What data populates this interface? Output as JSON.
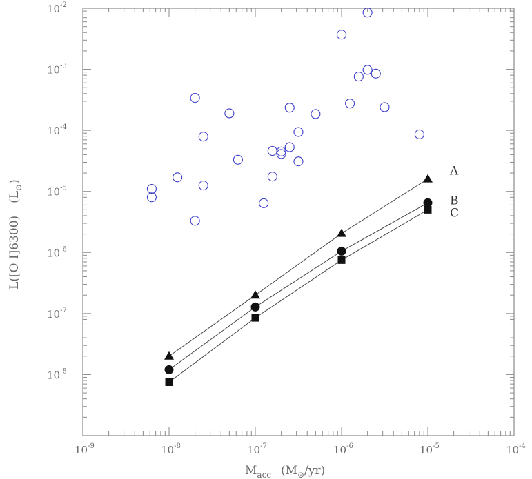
{
  "chart_data": {
    "type": "scatter",
    "title": "",
    "xlabel": "M_acc (M_sun/yr)",
    "ylabel": "L([O I]6300) (L_sun)",
    "xscale": "log",
    "yscale": "log",
    "xlim": [
      1e-09,
      0.0001
    ],
    "ylim": [
      1e-09,
      0.01
    ],
    "x_ticks": [
      {
        "base": "10",
        "exp": "-9"
      },
      {
        "base": "10",
        "exp": "-8"
      },
      {
        "base": "10",
        "exp": "-7"
      },
      {
        "base": "10",
        "exp": "-6"
      },
      {
        "base": "10",
        "exp": "-5"
      },
      {
        "base": "10",
        "exp": "-4"
      }
    ],
    "y_ticks": [
      {
        "base": "10",
        "exp": "-8",
        "value": 1e-08
      },
      {
        "base": "10",
        "exp": "-7",
        "value": 1e-07
      },
      {
        "base": "10",
        "exp": "-6",
        "value": 1e-06
      },
      {
        "base": "10",
        "exp": "-5",
        "value": 1e-05
      },
      {
        "base": "10",
        "exp": "-4",
        "value": 0.0001
      },
      {
        "base": "10",
        "exp": "-3",
        "value": 0.001
      },
      {
        "base": "10",
        "exp": "-2",
        "value": 0.01
      }
    ],
    "observations": {
      "marker": "open-circle",
      "color": "#3c3cc8",
      "points": [
        [
          6.3e-09,
          1.1e-05
        ],
        [
          6.3e-09,
          8e-06
        ],
        [
          1.25e-08,
          1.7e-05
        ],
        [
          2e-08,
          0.00034
        ],
        [
          2e-08,
          3.3e-06
        ],
        [
          2.5e-08,
          7.9e-05
        ],
        [
          2.5e-08,
          1.25e-05
        ],
        [
          5e-08,
          0.00019
        ],
        [
          6.3e-08,
          3.3e-05
        ],
        [
          1.25e-07,
          6.4e-06
        ],
        [
          1.58e-07,
          4.6e-05
        ],
        [
          1.58e-07,
          1.75e-05
        ],
        [
          2e-07,
          4.5e-05
        ],
        [
          2e-07,
          4.1e-05
        ],
        [
          2.5e-07,
          0.000235
        ],
        [
          2.5e-07,
          5.3e-05
        ],
        [
          3.16e-07,
          9.4e-05
        ],
        [
          3.16e-07,
          3.1e-05
        ],
        [
          5e-07,
          0.000185
        ],
        [
          1e-06,
          0.0037
        ],
        [
          1.25e-06,
          0.000275
        ],
        [
          1.58e-06,
          0.00076
        ],
        [
          2e-06,
          0.0085
        ],
        [
          2e-06,
          0.00098
        ],
        [
          2.5e-06,
          0.00085
        ],
        [
          3.16e-06,
          0.00024
        ],
        [
          8e-06,
          8.6e-05
        ]
      ]
    },
    "series": [
      {
        "name": "A",
        "marker": "triangle",
        "x": [
          1e-08,
          1e-07,
          1e-06,
          1e-05
        ],
        "y": [
          2e-08,
          2e-07,
          2.05e-06,
          1.6e-05
        ]
      },
      {
        "name": "B",
        "marker": "circle",
        "x": [
          1e-08,
          1e-07,
          1e-06,
          1e-05
        ],
        "y": [
          1.2e-08,
          1.28e-07,
          1.05e-06,
          6.5e-06
        ]
      },
      {
        "name": "C",
        "marker": "square",
        "x": [
          1e-08,
          1e-07,
          1e-06,
          1e-05
        ],
        "y": [
          7.5e-09,
          8.5e-08,
          7.5e-07,
          5e-06
        ]
      }
    ],
    "axis_labels": {
      "x_main": "M",
      "x_sub": "acc",
      "x_units": "(M",
      "x_units_sub": "⊙",
      "x_units_tail": "/yr)",
      "y_main": "L([O I]6300)",
      "y_units": "(L",
      "y_units_sub": "⊙",
      "y_units_tail": ")"
    }
  }
}
